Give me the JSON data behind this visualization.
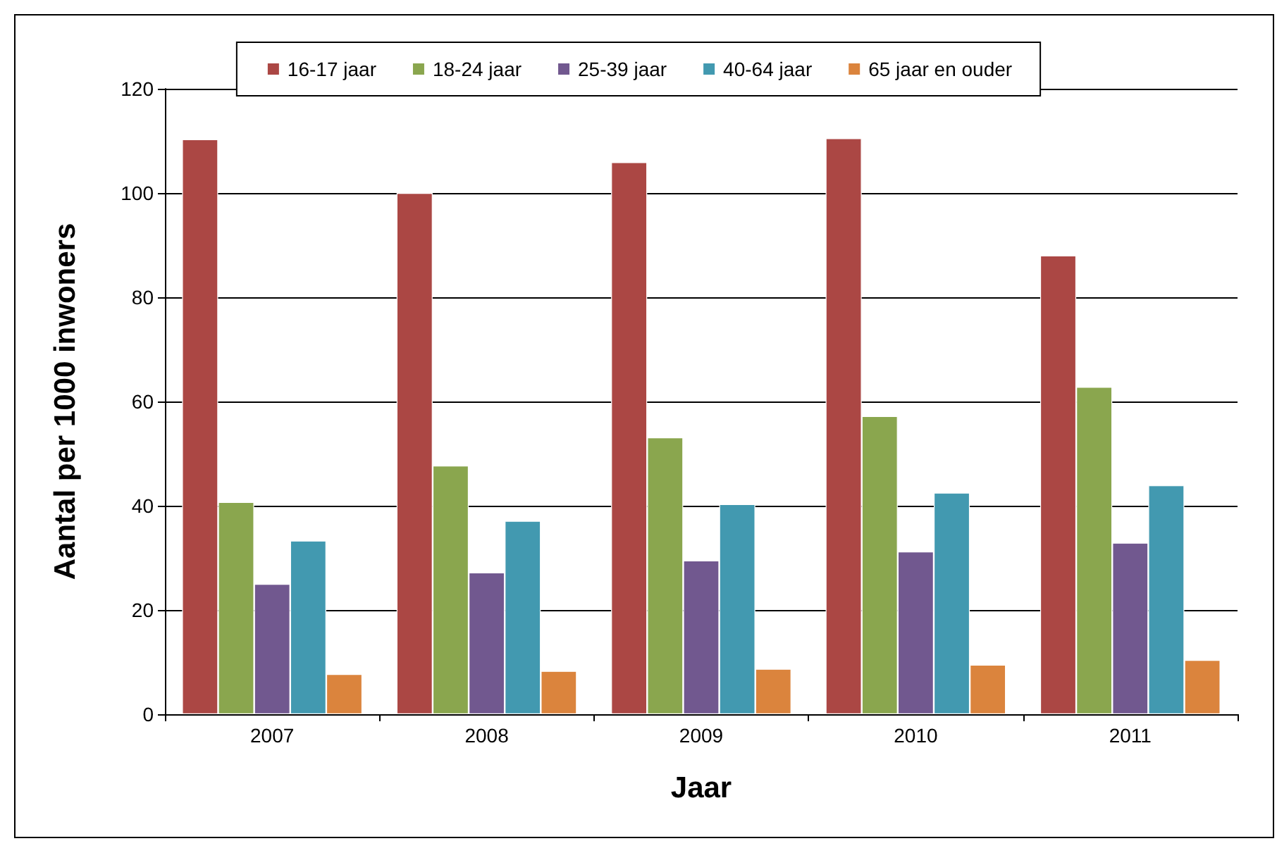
{
  "chart_data": {
    "type": "bar",
    "xlabel": "Jaar",
    "ylabel": "Aantal per 1000 inwoners",
    "categories": [
      "2007",
      "2008",
      "2009",
      "2010",
      "2011"
    ],
    "series": [
      {
        "name": "16-17 jaar",
        "color": "#ab4744",
        "values": [
          110.3,
          100,
          105.9,
          110.5,
          88.0
        ]
      },
      {
        "name": "18-24 jaar",
        "color": "#8aa64e",
        "values": [
          40.7,
          47.7,
          53.1,
          57.2,
          62.8
        ]
      },
      {
        "name": "25-39 jaar",
        "color": "#71588f",
        "values": [
          25.0,
          27.2,
          29.5,
          31.2,
          32.9
        ]
      },
      {
        "name": "40-64 jaar",
        "color": "#4299b0",
        "values": [
          33.3,
          37.1,
          40.3,
          42.5,
          43.9
        ]
      },
      {
        "name": "65 jaar en ouder",
        "color": "#db843d",
        "values": [
          7.7,
          8.3,
          8.7,
          9.5,
          10.4
        ]
      }
    ],
    "ylim": [
      0,
      120
    ],
    "yticks": [
      0,
      20,
      40,
      60,
      80,
      100,
      120
    ],
    "grid": "y",
    "legend": "top"
  }
}
